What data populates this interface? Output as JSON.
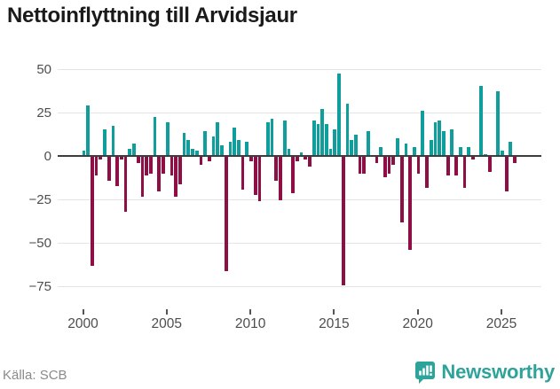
{
  "title": "Nettoinflyttning till Arvidsjaur",
  "source": {
    "label": "Källa: SCB"
  },
  "branding": {
    "name": "Newsworthy",
    "icon": "newsworthy-badge-icon",
    "color": "#2da39a"
  },
  "chart_data": {
    "type": "bar",
    "title": "Nettoinflyttning till Arvidsjaur",
    "xlabel": "",
    "ylabel": "",
    "x_unit": "quarter",
    "start_year": 2000,
    "periods_per_year": 4,
    "values": [
      3,
      29,
      -63,
      -11,
      -2,
      15,
      -14,
      17,
      -17,
      -2,
      -32,
      4,
      7,
      -4,
      -23,
      -11,
      -10,
      22,
      -20,
      -10,
      19,
      -11,
      -23,
      -16,
      13,
      9,
      4,
      3,
      -5,
      14,
      -3,
      11,
      19,
      6,
      -66,
      8,
      16,
      9,
      -19,
      8,
      -3,
      -22,
      -26,
      0,
      19,
      21,
      -14,
      -25,
      20,
      4,
      -21,
      -3,
      2,
      -2,
      -6,
      20,
      18,
      27,
      18,
      4,
      15,
      47,
      -74,
      30,
      9,
      12,
      -10,
      -10,
      14,
      0,
      -4,
      5,
      -12,
      -10,
      -5,
      10,
      -38,
      7,
      -54,
      5,
      -10,
      26,
      -18,
      9,
      19,
      20,
      14,
      -11,
      15,
      -11,
      5,
      -18,
      5,
      -2,
      0,
      40,
      1,
      -9,
      0,
      37,
      3,
      -20,
      8,
      -4
    ],
    "y_ticks": [
      {
        "label": "50",
        "value": 50
      },
      {
        "label": "25",
        "value": 25
      },
      {
        "label": "0",
        "value": 0
      },
      {
        "label": "−25",
        "value": -25
      },
      {
        "label": "−50",
        "value": -50
      },
      {
        "label": "−75",
        "value": -75
      }
    ],
    "x_ticks": [
      {
        "label": "2000",
        "year": 2000
      },
      {
        "label": "2005",
        "year": 2005
      },
      {
        "label": "2010",
        "year": 2010
      },
      {
        "label": "2015",
        "year": 2015
      },
      {
        "label": "2020",
        "year": 2020
      },
      {
        "label": "2025",
        "year": 2025
      }
    ],
    "ylim": [
      -75,
      50
    ],
    "grid": "horizontal",
    "legend": "none",
    "positive_color": "#0f9e9b",
    "negative_color": "#8e0f45"
  }
}
